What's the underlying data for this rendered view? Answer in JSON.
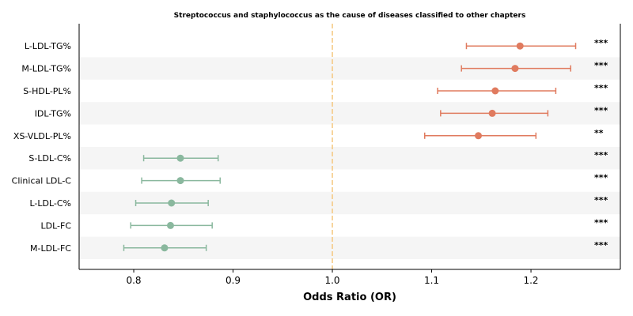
{
  "chart_data": {
    "type": "forest",
    "title": "Streptococcus and staphylococcus as the cause of diseases classified to other chapters",
    "xlabel": "Odds Ratio (OR)",
    "ylabel": "",
    "xlim": [
      0.745,
      1.29
    ],
    "xticks": [
      0.8,
      0.9,
      1.0,
      1.1,
      1.2
    ],
    "xtick_labels": [
      "0.8",
      "0.9",
      "1.0",
      "1.1",
      "1.2"
    ],
    "reference_line": 1.0,
    "grid": false,
    "alternating_row_shading": true,
    "colors": {
      "positive": "#e07b5f",
      "negative": "#8ab89e",
      "reference_line": "#f5c77e",
      "row_shade": "#f5f5f5"
    },
    "rows": [
      {
        "label": "L-LDL-TG%",
        "or": 1.189,
        "lower": 1.135,
        "upper": 1.245,
        "sig": "***",
        "direction": "positive"
      },
      {
        "label": "M-LDL-TG%",
        "or": 1.184,
        "lower": 1.13,
        "upper": 1.24,
        "sig": "***",
        "direction": "positive"
      },
      {
        "label": "S-HDL-PL%",
        "or": 1.164,
        "lower": 1.106,
        "upper": 1.225,
        "sig": "***",
        "direction": "positive"
      },
      {
        "label": "IDL-TG%",
        "or": 1.161,
        "lower": 1.109,
        "upper": 1.217,
        "sig": "***",
        "direction": "positive"
      },
      {
        "label": "XS-VLDL-PL%",
        "or": 1.147,
        "lower": 1.093,
        "upper": 1.205,
        "sig": "**",
        "direction": "positive"
      },
      {
        "label": "S-LDL-C%",
        "or": 0.847,
        "lower": 0.81,
        "upper": 0.885,
        "sig": "***",
        "direction": "negative"
      },
      {
        "label": "Clinical LDL-C",
        "or": 0.847,
        "lower": 0.808,
        "upper": 0.887,
        "sig": "***",
        "direction": "negative"
      },
      {
        "label": "L-LDL-C%",
        "or": 0.838,
        "lower": 0.802,
        "upper": 0.875,
        "sig": "***",
        "direction": "negative"
      },
      {
        "label": "LDL-FC",
        "or": 0.837,
        "lower": 0.797,
        "upper": 0.879,
        "sig": "***",
        "direction": "negative"
      },
      {
        "label": "M-LDL-FC",
        "or": 0.831,
        "lower": 0.79,
        "upper": 0.873,
        "sig": "***",
        "direction": "negative"
      }
    ]
  }
}
